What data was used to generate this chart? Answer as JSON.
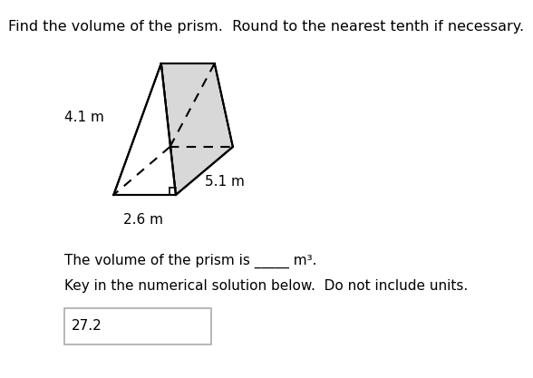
{
  "title": "Find the volume of the prism.  Round to the nearest tenth if necessary.",
  "dim1_label": "4.1 m",
  "dim2_label": "5.1 m",
  "dim3_label": "2.6 m",
  "volume_text": "The volume of the prism is _____ m³.",
  "key_text": "Key in the numerical solution below.  Do not include units.",
  "answer": "27.2",
  "bg_color": "#ffffff",
  "prism_fill": "#d8d8d8",
  "prism_line_color": "#000000",
  "text_color": "#000000",
  "title_fontsize": 11.5,
  "label_fontsize": 11,
  "body_fontsize": 11,
  "answer_fontsize": 11
}
